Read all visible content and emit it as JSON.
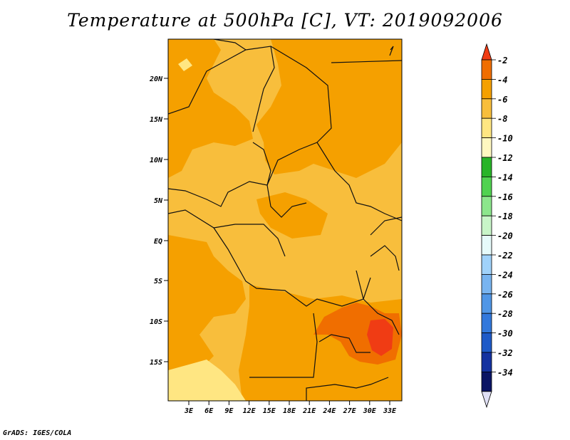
{
  "title": "Temperature at 500hPa [C], VT: 2019092006",
  "credit": "GrADS: IGES/COLA",
  "map": {
    "lat_ticks": [
      "20N",
      "15N",
      "10N",
      "5N",
      "EQ",
      "5S",
      "10S",
      "15S"
    ],
    "lon_ticks": [
      "3E",
      "6E",
      "9E",
      "12E",
      "15E",
      "18E",
      "21E",
      "24E",
      "27E",
      "30E",
      "33E"
    ]
  },
  "colorbar": {
    "labels": [
      "-2",
      "-4",
      "-6",
      "-8",
      "-10",
      "-12",
      "-14",
      "-16",
      "-18",
      "-20",
      "-22",
      "-24",
      "-26",
      "-28",
      "-30",
      "-32",
      "-34"
    ],
    "colors": [
      "#f03c14",
      "#f06e00",
      "#f5a000",
      "#f8be3c",
      "#ffe682",
      "#fff8c0",
      "#28b428",
      "#50d250",
      "#8ce68c",
      "#c8f5c8",
      "#e6fafa",
      "#a0d2fa",
      "#78b4f0",
      "#5096e6",
      "#3278dc",
      "#1e5ac8",
      "#1432a0",
      "#0a1464",
      "#e0e0f5"
    ]
  },
  "colors": {
    "field_dominant": "#f8be3c",
    "field_warm": "#f5a000",
    "field_hot": "#f06e00",
    "field_cool": "#ffe682",
    "border": "#111111"
  }
}
